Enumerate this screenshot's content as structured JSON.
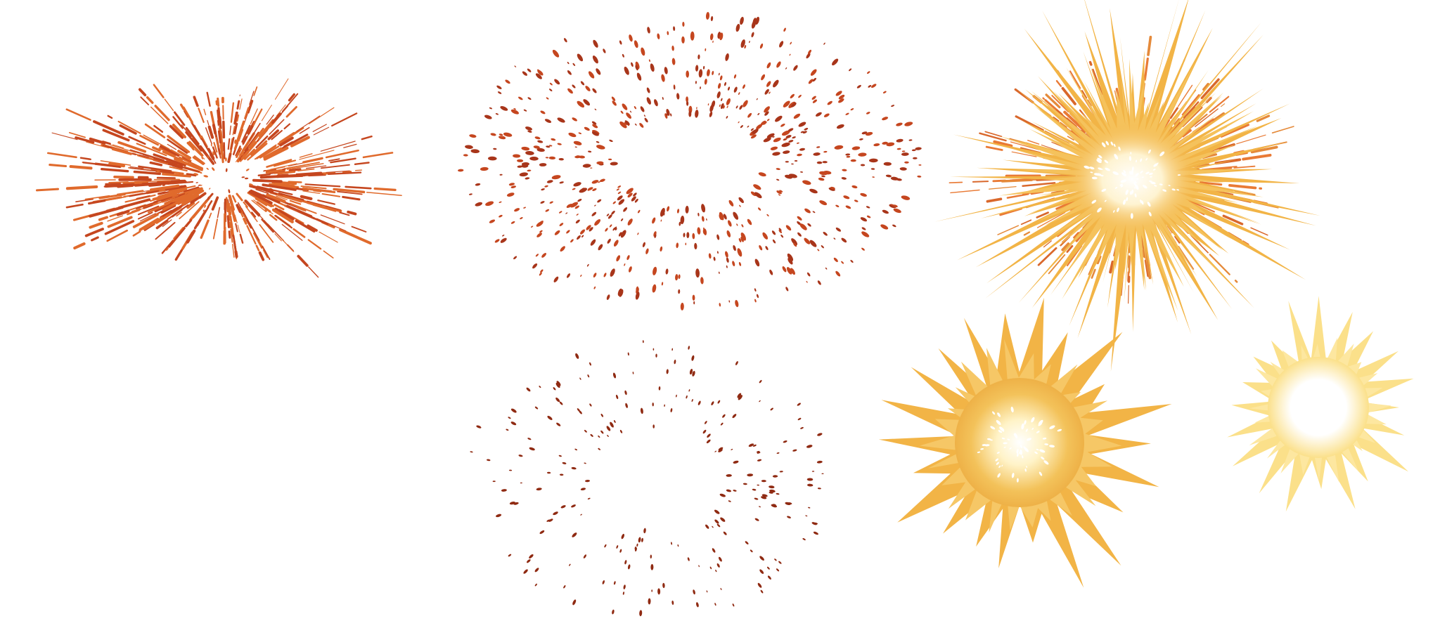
{
  "scene": {
    "background": "#ffffff",
    "assets": [
      {
        "name": "orange-streak-burst",
        "palette": [
          "#c5461f",
          "#e06a2c"
        ]
      },
      {
        "name": "dotted-spark-ring-large",
        "palette": [
          "#a8351a",
          "#c5461f"
        ]
      },
      {
        "name": "golden-explosion-large",
        "palette": [
          "#f2b446",
          "#e97a35",
          "#fff6d8"
        ]
      },
      {
        "name": "dotted-spark-ring-small",
        "palette": [
          "#8f2a12"
        ]
      },
      {
        "name": "golden-starburst",
        "palette": [
          "#f2b446",
          "#fff3c8"
        ]
      },
      {
        "name": "pale-starburst",
        "palette": [
          "#fbe08a",
          "#ffffff"
        ]
      }
    ]
  }
}
